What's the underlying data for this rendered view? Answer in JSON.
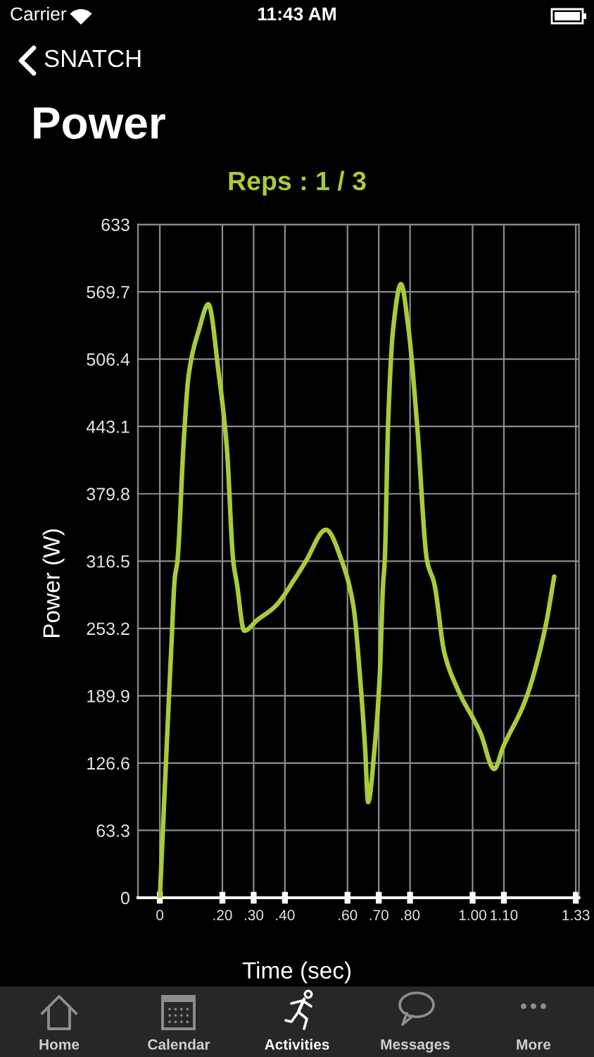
{
  "chart_data": {
    "type": "line",
    "title": "Power",
    "subtitle": "Reps : 1 / 3",
    "xlabel": "Time (sec)",
    "ylabel": "Power (W)",
    "x": [
      0,
      0.037,
      0.048,
      0.056,
      0.076,
      0.092,
      0.126,
      0.155,
      0.189,
      0.214,
      0.235,
      0.246,
      0.27,
      0.311,
      0.369,
      0.434,
      0.466,
      0.531,
      0.585,
      0.619,
      0.64,
      0.656,
      0.666,
      0.687,
      0.703,
      0.714,
      0.719,
      0.73,
      0.746,
      0.771,
      0.795,
      0.822,
      0.855,
      0.877,
      0.91,
      0.954,
      1.025,
      1.069,
      1.098,
      1.169,
      1.231,
      1.261
    ],
    "series": [
      {
        "color": "#a9cb3b",
        "values": [
          0,
          237,
          301,
          316,
          427,
          491,
          535,
          558,
          491,
          424,
          316,
          296,
          251,
          261,
          274,
          301,
          316,
          346,
          314,
          274,
          208,
          142,
          90,
          142,
          208,
          296,
          316,
          447,
          535,
          577,
          535,
          447,
          316,
          296,
          230,
          195,
          155,
          121,
          142,
          186,
          252,
          302
        ]
      }
    ],
    "xlim": [
      -0.07,
      1.34
    ],
    "xticks": [
      0,
      {
        "value": 0.2,
        "label": ".20"
      },
      {
        "value": 0.3,
        "label": ".30"
      },
      {
        "value": 0.4,
        "label": ".40"
      },
      {
        "value": 0.6,
        "label": ".60"
      },
      {
        "value": 0.7,
        "label": ".70"
      },
      {
        "value": 0.8,
        "label": ".80"
      },
      {
        "value": 1.0,
        "label": "1.00"
      },
      {
        "value": 1.1,
        "label": "1.10"
      },
      1.33
    ],
    "ylim": [
      0,
      633
    ],
    "yticks": [
      0,
      63.3,
      126.6,
      189.9,
      253.2,
      316.5,
      379.8,
      443.1,
      506.4,
      569.7,
      633
    ],
    "grid": true,
    "annotations": [
      "Carrier",
      "11:43 AM",
      "SNATCH",
      "Home",
      "Calendar",
      "Activities",
      "Messages",
      "More"
    ]
  }
}
